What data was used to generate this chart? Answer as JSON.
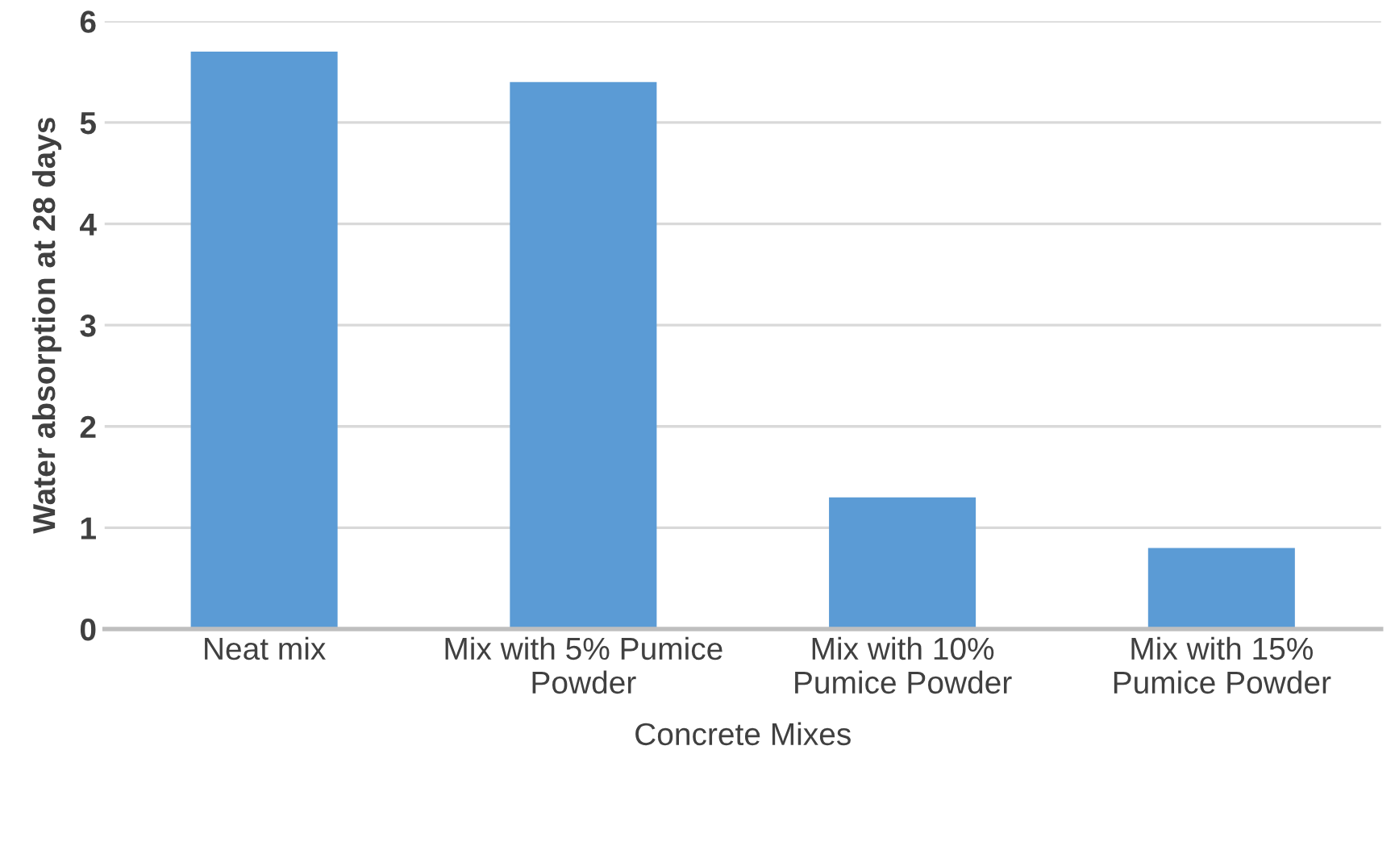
{
  "chart_data": {
    "type": "bar",
    "categories": [
      "Neat mix",
      "Mix with 5% Pumice\nPowder",
      "Mix with 10%\nPumice Powder",
      "Mix with 15%\nPumice Powder"
    ],
    "values": [
      5.7,
      5.4,
      1.3,
      0.8
    ],
    "color": "#5b9bd5",
    "xlabel": "Concrete Mixes",
    "ylabel": "Water absorption at 28 days",
    "ylim": [
      0,
      6
    ],
    "yticks": [
      0,
      1,
      2,
      3,
      4,
      5,
      6
    ],
    "grid": "y"
  }
}
